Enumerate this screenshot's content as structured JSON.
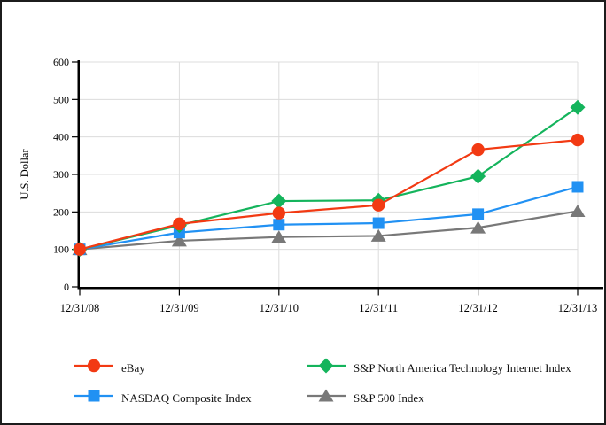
{
  "frame": {
    "background": "#ffffff",
    "border_color": "#1c1c1c"
  },
  "chart_data": {
    "type": "line",
    "title": "",
    "xlabel": "",
    "ylabel": "U.S. Dollar",
    "categories": [
      "12/31/08",
      "12/31/09",
      "12/31/10",
      "12/31/11",
      "12/31/12",
      "12/31/13"
    ],
    "series": [
      {
        "name": "eBay",
        "marker": "circle",
        "color": "#f23a13",
        "values": [
          100,
          168,
          197,
          218,
          366,
          392
        ]
      },
      {
        "name": "S&P North America Technology Internet Index",
        "marker": "diamond",
        "color": "#14b45c",
        "values": [
          100,
          164,
          229,
          231,
          295,
          479
        ]
      },
      {
        "name": "NASDAQ Composite Index",
        "marker": "square",
        "color": "#2191f3",
        "values": [
          100,
          145,
          166,
          170,
          194,
          267
        ]
      },
      {
        "name": "S&P 500 Index",
        "marker": "triangle",
        "color": "#787878",
        "values": [
          100,
          123,
          133,
          136,
          158,
          202
        ]
      }
    ],
    "ylim": [
      0,
      600
    ],
    "yticks": [
      0,
      100,
      200,
      300,
      400,
      500,
      600
    ],
    "grid": true,
    "legend_position": "bottom",
    "gridline_color": "#dcdcdc",
    "axis_color": "#000000",
    "text_color": "#000000"
  }
}
